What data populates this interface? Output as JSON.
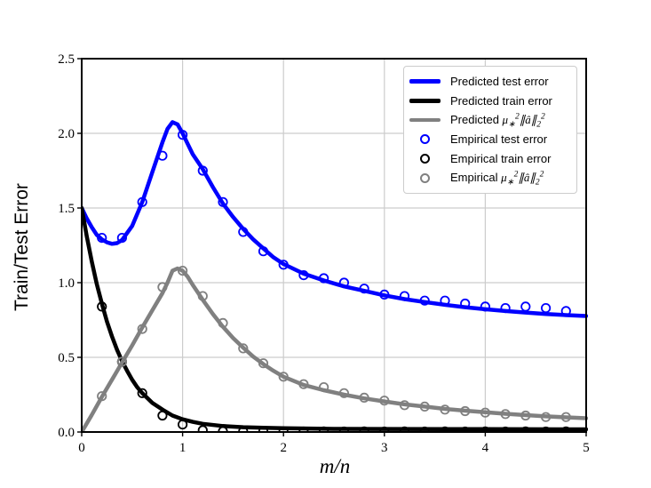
{
  "axes": {
    "xlabel": "m/n",
    "ylabel": "Train/Test Error",
    "x_ticks": [
      {
        "value": 0,
        "label": "0"
      },
      {
        "value": 1,
        "label": "1"
      },
      {
        "value": 2,
        "label": "2"
      },
      {
        "value": 3,
        "label": "3"
      },
      {
        "value": 4,
        "label": "4"
      },
      {
        "value": 5,
        "label": "5"
      }
    ],
    "y_ticks": [
      {
        "value": 0.0,
        "label": "0.0"
      },
      {
        "value": 0.5,
        "label": "0.5"
      },
      {
        "value": 1.0,
        "label": "1.0"
      },
      {
        "value": 1.5,
        "label": "1.5"
      },
      {
        "value": 2.0,
        "label": "2.0"
      },
      {
        "value": 2.5,
        "label": "2.5"
      }
    ],
    "grid_color": "#cccccc",
    "spine_color": "#000000",
    "tick_color": "#000000"
  },
  "legend": {
    "items": [
      {
        "type": "line",
        "color": "#0000ff",
        "label_html": "Predicted test error",
        "label": "Predicted test error"
      },
      {
        "type": "line",
        "color": "#000000",
        "label_html": "Predicted train error",
        "label": "Predicted train error"
      },
      {
        "type": "line",
        "color": "#808080",
        "label_html": "Predicted <span class=\"math\">μ<sub>∗</sub><sup>2</sup>∥â∥<sub>2</sub><sup>2</sup></span>",
        "label": "Predicted μ∗²∥â∥₂²"
      },
      {
        "type": "marker",
        "color": "#0000ff",
        "label_html": "Empirical test error",
        "label": "Empirical test error"
      },
      {
        "type": "marker",
        "color": "#000000",
        "label_html": "Empirical train error",
        "label": "Empirical train error"
      },
      {
        "type": "marker",
        "color": "#808080",
        "label_html": "Empirical <span class=\"math\">μ<sub>∗</sub><sup>2</sup>∥â∥<sub>2</sub><sup>2</sup></span>",
        "label": "Empirical μ∗²∥â∥₂²"
      }
    ]
  },
  "chart_data": {
    "type": "line",
    "title": "",
    "xlabel": "m/n",
    "ylabel": "Train/Test Error",
    "xlim": [
      0,
      5
    ],
    "ylim": [
      0,
      2.5
    ],
    "grid": true,
    "legend_position": "upper right",
    "series": [
      {
        "name": "Predicted test error",
        "type": "line",
        "color": "#0000ff",
        "linewidth": 4.5,
        "points": [
          [
            0,
            1.5
          ],
          [
            0.05,
            1.43
          ],
          [
            0.1,
            1.37
          ],
          [
            0.15,
            1.32
          ],
          [
            0.2,
            1.29
          ],
          [
            0.25,
            1.27
          ],
          [
            0.3,
            1.26
          ],
          [
            0.35,
            1.265
          ],
          [
            0.4,
            1.285
          ],
          [
            0.5,
            1.38
          ],
          [
            0.6,
            1.54
          ],
          [
            0.7,
            1.74
          ],
          [
            0.8,
            1.94
          ],
          [
            0.85,
            2.03
          ],
          [
            0.9,
            2.075
          ],
          [
            0.95,
            2.06
          ],
          [
            1.0,
            2.0
          ],
          [
            1.05,
            1.93
          ],
          [
            1.1,
            1.86
          ],
          [
            1.2,
            1.76
          ],
          [
            1.3,
            1.64
          ],
          [
            1.4,
            1.53
          ],
          [
            1.5,
            1.44
          ],
          [
            1.6,
            1.36
          ],
          [
            1.7,
            1.29
          ],
          [
            1.8,
            1.23
          ],
          [
            1.9,
            1.17
          ],
          [
            2.0,
            1.125
          ],
          [
            2.2,
            1.06
          ],
          [
            2.4,
            1.015
          ],
          [
            2.6,
            0.975
          ],
          [
            2.8,
            0.945
          ],
          [
            3.0,
            0.915
          ],
          [
            3.2,
            0.89
          ],
          [
            3.4,
            0.87
          ],
          [
            3.6,
            0.852
          ],
          [
            3.8,
            0.836
          ],
          [
            4.0,
            0.822
          ],
          [
            4.2,
            0.81
          ],
          [
            4.4,
            0.8
          ],
          [
            4.6,
            0.79
          ],
          [
            4.8,
            0.783
          ],
          [
            5.0,
            0.777
          ]
        ]
      },
      {
        "name": "Predicted train error",
        "type": "line",
        "color": "#000000",
        "linewidth": 4.5,
        "points": [
          [
            0,
            1.5
          ],
          [
            0.05,
            1.31
          ],
          [
            0.1,
            1.14
          ],
          [
            0.15,
            0.99
          ],
          [
            0.2,
            0.86
          ],
          [
            0.25,
            0.74
          ],
          [
            0.3,
            0.64
          ],
          [
            0.35,
            0.55
          ],
          [
            0.4,
            0.475
          ],
          [
            0.45,
            0.41
          ],
          [
            0.5,
            0.35
          ],
          [
            0.55,
            0.3
          ],
          [
            0.6,
            0.26
          ],
          [
            0.7,
            0.195
          ],
          [
            0.8,
            0.15
          ],
          [
            0.9,
            0.11
          ],
          [
            1.0,
            0.085
          ],
          [
            1.1,
            0.068
          ],
          [
            1.2,
            0.055
          ],
          [
            1.4,
            0.04
          ],
          [
            1.6,
            0.032
          ],
          [
            1.8,
            0.028
          ],
          [
            2.0,
            0.025
          ],
          [
            2.5,
            0.021
          ],
          [
            3.0,
            0.02
          ],
          [
            4.0,
            0.019
          ],
          [
            5.0,
            0.018
          ]
        ]
      },
      {
        "name": "Predicted μ∗²∥â∥₂²",
        "type": "line",
        "color": "#808080",
        "linewidth": 4.5,
        "points": [
          [
            0,
            0
          ],
          [
            0.1,
            0.115
          ],
          [
            0.2,
            0.235
          ],
          [
            0.3,
            0.35
          ],
          [
            0.4,
            0.465
          ],
          [
            0.5,
            0.58
          ],
          [
            0.6,
            0.7
          ],
          [
            0.7,
            0.815
          ],
          [
            0.8,
            0.93
          ],
          [
            0.85,
            1.0
          ],
          [
            0.9,
            1.08
          ],
          [
            0.95,
            1.095
          ],
          [
            1.0,
            1.08
          ],
          [
            1.05,
            1.04
          ],
          [
            1.1,
            0.985
          ],
          [
            1.2,
            0.885
          ],
          [
            1.3,
            0.79
          ],
          [
            1.4,
            0.705
          ],
          [
            1.5,
            0.63
          ],
          [
            1.6,
            0.565
          ],
          [
            1.7,
            0.505
          ],
          [
            1.8,
            0.455
          ],
          [
            1.9,
            0.41
          ],
          [
            2.0,
            0.37
          ],
          [
            2.2,
            0.315
          ],
          [
            2.4,
            0.28
          ],
          [
            2.6,
            0.25
          ],
          [
            2.8,
            0.225
          ],
          [
            3.0,
            0.205
          ],
          [
            3.2,
            0.185
          ],
          [
            3.4,
            0.17
          ],
          [
            3.6,
            0.155
          ],
          [
            3.8,
            0.143
          ],
          [
            4.0,
            0.132
          ],
          [
            4.2,
            0.122
          ],
          [
            4.4,
            0.113
          ],
          [
            4.6,
            0.105
          ],
          [
            4.8,
            0.098
          ],
          [
            5.0,
            0.092
          ]
        ]
      },
      {
        "name": "Empirical test error",
        "type": "scatter",
        "color": "#0000ff",
        "points": [
          [
            0.2,
            1.3
          ],
          [
            0.4,
            1.3
          ],
          [
            0.6,
            1.54
          ],
          [
            0.8,
            1.85
          ],
          [
            1.0,
            1.99
          ],
          [
            1.2,
            1.75
          ],
          [
            1.4,
            1.54
          ],
          [
            1.6,
            1.34
          ],
          [
            1.8,
            1.21
          ],
          [
            2.0,
            1.12
          ],
          [
            2.2,
            1.05
          ],
          [
            2.4,
            1.03
          ],
          [
            2.6,
            1.0
          ],
          [
            2.8,
            0.96
          ],
          [
            3.0,
            0.92
          ],
          [
            3.2,
            0.91
          ],
          [
            3.4,
            0.88
          ],
          [
            3.6,
            0.88
          ],
          [
            3.8,
            0.86
          ],
          [
            4.0,
            0.84
          ],
          [
            4.2,
            0.83
          ],
          [
            4.4,
            0.84
          ],
          [
            4.6,
            0.83
          ],
          [
            4.8,
            0.81
          ]
        ]
      },
      {
        "name": "Empirical train error",
        "type": "scatter",
        "color": "#000000",
        "points": [
          [
            0.2,
            0.84
          ],
          [
            0.4,
            0.47
          ],
          [
            0.6,
            0.26
          ],
          [
            0.8,
            0.11
          ],
          [
            1.0,
            0.05
          ],
          [
            1.2,
            0.012
          ],
          [
            1.4,
            0.005
          ],
          [
            1.6,
            0.004
          ],
          [
            1.8,
            0.004
          ],
          [
            2.0,
            0.004
          ],
          [
            2.2,
            0.003
          ],
          [
            2.4,
            0.004
          ],
          [
            2.6,
            0.003
          ],
          [
            2.8,
            0.004
          ],
          [
            3.0,
            0.003
          ],
          [
            3.2,
            0.004
          ],
          [
            3.4,
            0.003
          ],
          [
            3.6,
            0.004
          ],
          [
            3.8,
            0.003
          ],
          [
            4.0,
            0.004
          ],
          [
            4.2,
            0.003
          ],
          [
            4.4,
            0.004
          ],
          [
            4.6,
            0.003
          ],
          [
            4.8,
            0.004
          ]
        ]
      },
      {
        "name": "Empirical μ∗²∥â∥₂²",
        "type": "scatter",
        "color": "#808080",
        "points": [
          [
            0.2,
            0.24
          ],
          [
            0.4,
            0.47
          ],
          [
            0.6,
            0.69
          ],
          [
            0.8,
            0.97
          ],
          [
            1.0,
            1.08
          ],
          [
            1.2,
            0.91
          ],
          [
            1.4,
            0.73
          ],
          [
            1.6,
            0.56
          ],
          [
            1.8,
            0.46
          ],
          [
            2.0,
            0.37
          ],
          [
            2.2,
            0.32
          ],
          [
            2.4,
            0.3
          ],
          [
            2.6,
            0.26
          ],
          [
            2.8,
            0.23
          ],
          [
            3.0,
            0.21
          ],
          [
            3.2,
            0.18
          ],
          [
            3.4,
            0.17
          ],
          [
            3.6,
            0.15
          ],
          [
            3.8,
            0.14
          ],
          [
            4.0,
            0.13
          ],
          [
            4.2,
            0.12
          ],
          [
            4.4,
            0.11
          ],
          [
            4.6,
            0.1
          ],
          [
            4.8,
            0.1
          ]
        ]
      }
    ]
  }
}
